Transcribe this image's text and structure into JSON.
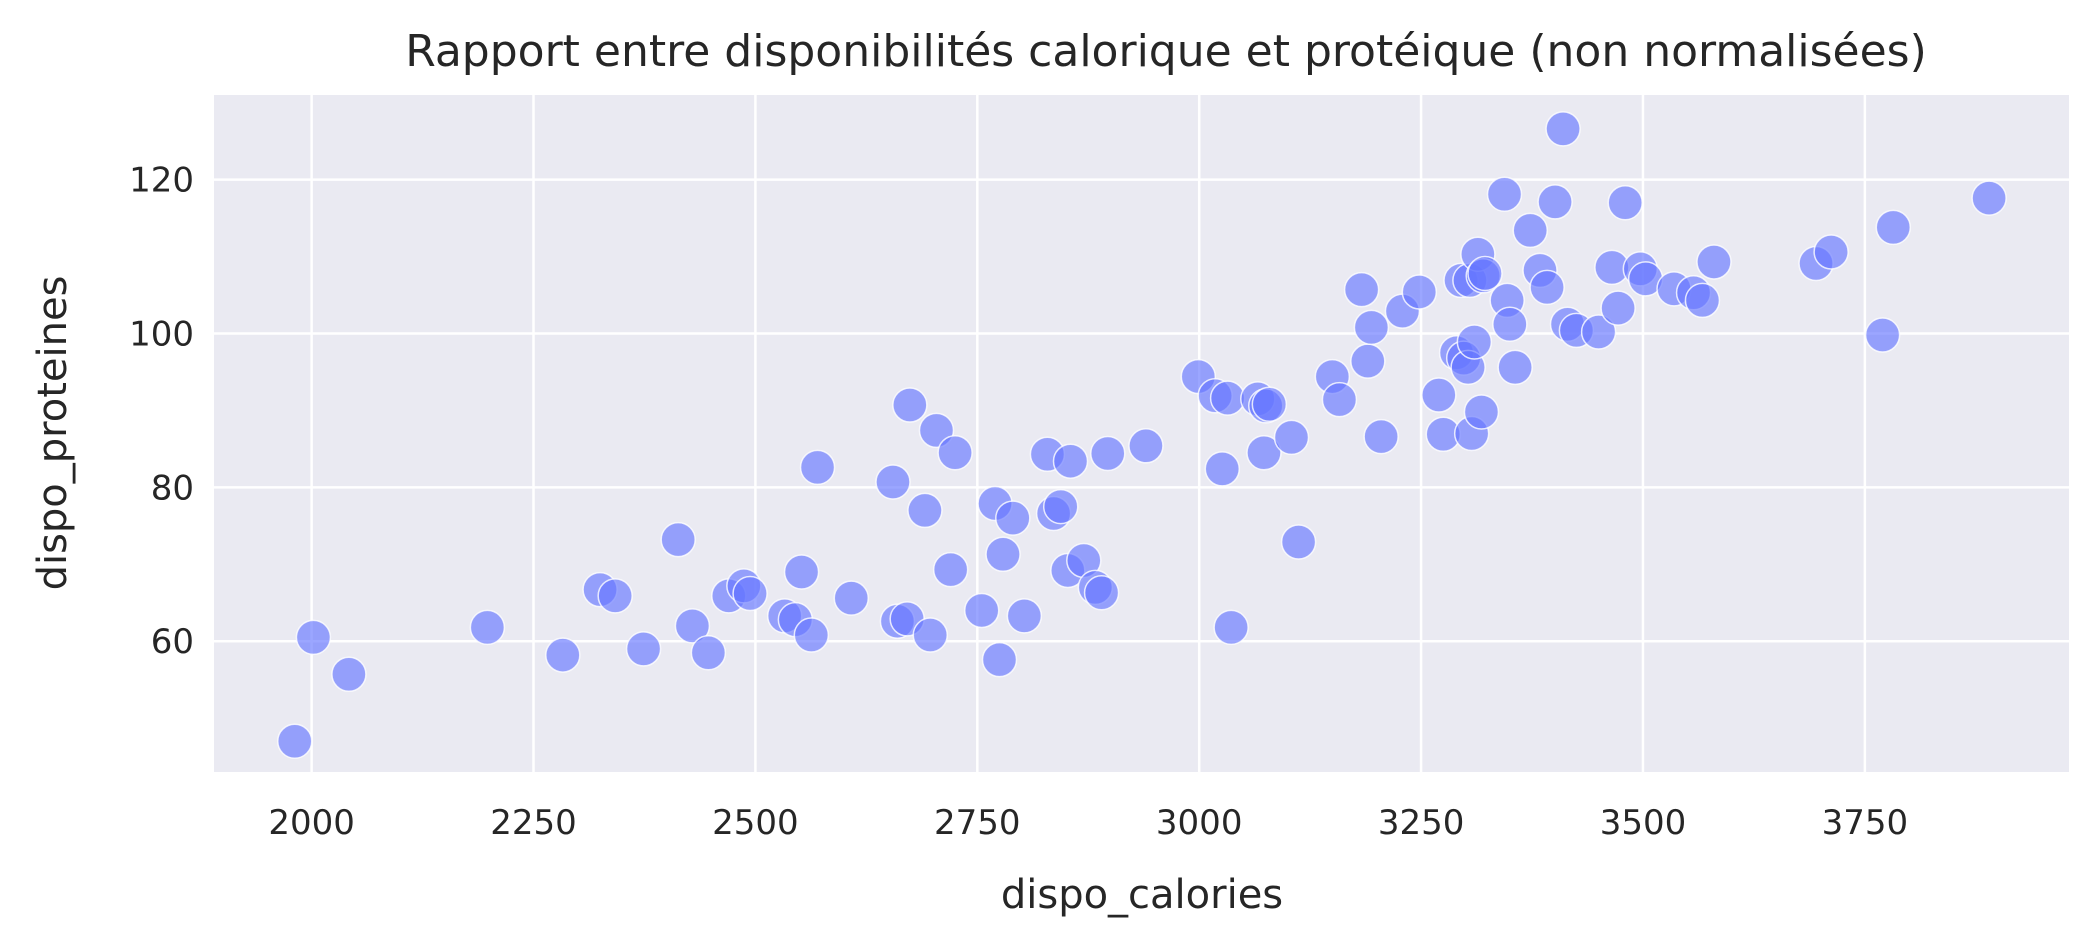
{
  "chart_data": {
    "type": "scatter",
    "title": "Rapport entre disponibilités calorique et protéique (non normalisées)",
    "xlabel": "dispo_calories",
    "ylabel": "dispo_proteines",
    "xlim": [
      1890,
      3980
    ],
    "ylim": [
      43,
      131
    ],
    "xticks": [
      2000,
      2250,
      2500,
      2750,
      3000,
      3250,
      3500,
      3750
    ],
    "yticks": [
      60,
      80,
      100,
      120
    ],
    "grid": true,
    "background_color": "#eaeaf2",
    "point_color": "#6677ff",
    "point_opacity": 0.65,
    "points": [
      [
        1981,
        47.0
      ],
      [
        2002,
        60.5
      ],
      [
        2042,
        55.7
      ],
      [
        2198,
        61.8
      ],
      [
        2283,
        58.2
      ],
      [
        2325,
        66.7
      ],
      [
        2342,
        65.9
      ],
      [
        2374,
        59.0
      ],
      [
        2413,
        73.2
      ],
      [
        2429,
        62.0
      ],
      [
        2447,
        58.5
      ],
      [
        2470,
        65.9
      ],
      [
        2487,
        67.2
      ],
      [
        2494,
        66.2
      ],
      [
        2533,
        63.3
      ],
      [
        2545,
        62.8
      ],
      [
        2552,
        69.0
      ],
      [
        2563,
        60.8
      ],
      [
        2570,
        82.6
      ],
      [
        2608,
        65.6
      ],
      [
        2655,
        80.7
      ],
      [
        2660,
        62.6
      ],
      [
        2671,
        62.9
      ],
      [
        2674,
        90.7
      ],
      [
        2691,
        77.0
      ],
      [
        2697,
        60.8
      ],
      [
        2704,
        87.4
      ],
      [
        2720,
        69.3
      ],
      [
        2725,
        84.5
      ],
      [
        2755,
        64.0
      ],
      [
        2770,
        77.9
      ],
      [
        2775,
        57.6
      ],
      [
        2779,
        71.3
      ],
      [
        2790,
        76.0
      ],
      [
        2803,
        63.3
      ],
      [
        2829,
        84.3
      ],
      [
        2836,
        76.6
      ],
      [
        2844,
        77.5
      ],
      [
        2852,
        69.2
      ],
      [
        2855,
        83.4
      ],
      [
        2870,
        70.5
      ],
      [
        2883,
        67.0
      ],
      [
        2890,
        66.3
      ],
      [
        2897,
        84.4
      ],
      [
        2940,
        85.4
      ],
      [
        2999,
        94.4
      ],
      [
        3018,
        91.9
      ],
      [
        3026,
        82.4
      ],
      [
        3032,
        91.6
      ],
      [
        3036,
        61.8
      ],
      [
        3066,
        91.5
      ],
      [
        3073,
        84.5
      ],
      [
        3075,
        90.6
      ],
      [
        3079,
        90.8
      ],
      [
        3104,
        86.5
      ],
      [
        3112,
        72.9
      ],
      [
        3150,
        94.4
      ],
      [
        3158,
        91.4
      ],
      [
        3183,
        105.7
      ],
      [
        3190,
        96.4
      ],
      [
        3194,
        100.8
      ],
      [
        3205,
        86.6
      ],
      [
        3229,
        102.9
      ],
      [
        3248,
        105.4
      ],
      [
        3270,
        92.0
      ],
      [
        3275,
        86.9
      ],
      [
        3290,
        97.5
      ],
      [
        3295,
        106.9
      ],
      [
        3298,
        96.8
      ],
      [
        3303,
        95.6
      ],
      [
        3305,
        106.9
      ],
      [
        3307,
        87.0
      ],
      [
        3310,
        98.9
      ],
      [
        3314,
        110.3
      ],
      [
        3318,
        89.8
      ],
      [
        3320,
        107.5
      ],
      [
        3322,
        107.8
      ],
      [
        3344,
        118.1
      ],
      [
        3347,
        104.3
      ],
      [
        3350,
        101.2
      ],
      [
        3356,
        95.6
      ],
      [
        3373,
        113.4
      ],
      [
        3384,
        108.2
      ],
      [
        3392,
        106.0
      ],
      [
        3401,
        117.1
      ],
      [
        3410,
        126.6
      ],
      [
        3415,
        101.2
      ],
      [
        3425,
        100.4
      ],
      [
        3450,
        100.2
      ],
      [
        3465,
        108.6
      ],
      [
        3472,
        103.3
      ],
      [
        3480,
        117.0
      ],
      [
        3497,
        108.4
      ],
      [
        3503,
        107.1
      ],
      [
        3535,
        105.8
      ],
      [
        3557,
        105.3
      ],
      [
        3567,
        104.3
      ],
      [
        3580,
        109.3
      ],
      [
        3695,
        109.1
      ],
      [
        3712,
        110.6
      ],
      [
        3770,
        99.8
      ],
      [
        3782,
        113.8
      ],
      [
        3890,
        117.6
      ]
    ]
  }
}
